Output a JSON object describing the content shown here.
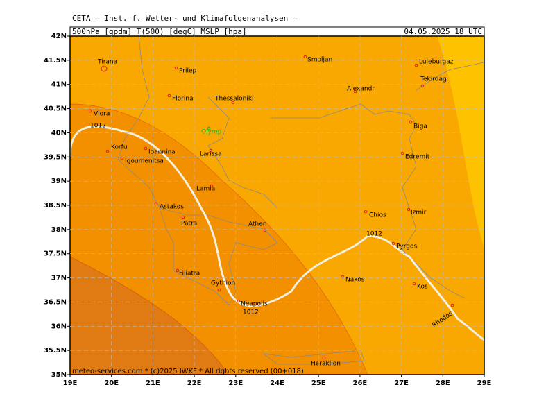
{
  "header": {
    "title": "CETA – Inst. f. Wetter- und Klimafolgenanalysen –",
    "fields": "500hPa [gpdm] T(500) [degC] MSLP [hpa]",
    "date": "04.05.2025 18 UTC"
  },
  "axes": {
    "lat_labels": [
      "42N",
      "41.5N",
      "41N",
      "40.5N",
      "40N",
      "39.5N",
      "39N",
      "38.5N",
      "38N",
      "37.5N",
      "37N",
      "36.5N",
      "36N",
      "35.5N",
      "35N"
    ],
    "lon_labels": [
      "19E",
      "20E",
      "21E",
      "22E",
      "23E",
      "24E",
      "25E",
      "26E",
      "27E",
      "28E",
      "29E"
    ]
  },
  "cities": [
    "Tirana",
    "Prilep",
    "Smoljan",
    "Luleburgaz",
    "Tekirdag",
    "Alexandr.",
    "Florina",
    "Thessaloniki",
    "Vlora",
    "Biga",
    "Olymp",
    "Korfu",
    "Ioannina",
    "Larissa",
    "Edremit",
    "Igoumenitsa",
    "Lamia",
    "Astakos",
    "Chios",
    "Izmir",
    "Patrai",
    "Athen",
    "Pyrgos",
    "Filiatra",
    "Naxos",
    "Gythion",
    "Kos",
    "Neapolis",
    "Rhodos",
    "Heraklion"
  ],
  "isobar_labels": [
    "1012",
    "1012",
    "1012"
  ],
  "footer": "meteo-services.com * (c)2025 IWKF * All rights reserved (00+018)"
}
